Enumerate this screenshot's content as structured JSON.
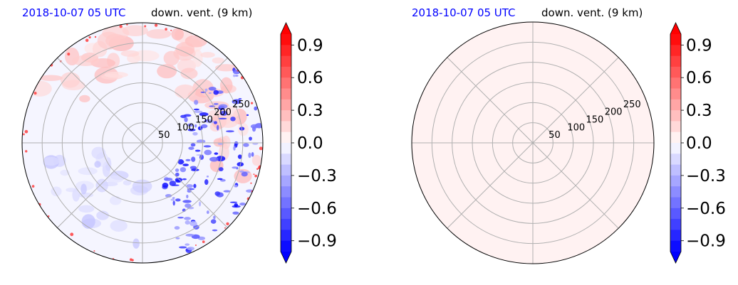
{
  "chart_data": [
    {
      "type": "polar",
      "title_left": "2018-10-07 05 UTC",
      "title_right": "down. vent. (9 km)",
      "radial_ticks": [
        "50",
        "100",
        "150",
        "200",
        "250"
      ],
      "radial_values": [
        50,
        100,
        150,
        200,
        250
      ],
      "rmax": 300,
      "field": "nonzero",
      "colorbar": {
        "range": [
          -1.0,
          1.0
        ],
        "tick_values": [
          0.9,
          0.6,
          0.3,
          0.0,
          -0.3,
          -0.6,
          -0.9
        ],
        "tick_labels": [
          "0.9",
          "0.6",
          "0.3",
          "0.0",
          "−0.3",
          "−0.6",
          "−0.9"
        ],
        "colormap": "bwr",
        "extend": "both"
      }
    },
    {
      "type": "polar",
      "title_left": "2018-10-07 05 UTC",
      "title_right": "down. vent. (9 km)",
      "radial_ticks": [
        "50",
        "100",
        "150",
        "200",
        "250"
      ],
      "radial_values": [
        50,
        100,
        150,
        200,
        250
      ],
      "rmax": 300,
      "field": "uniform_near_zero",
      "colorbar": {
        "range": [
          -1.0,
          1.0
        ],
        "tick_values": [
          0.9,
          0.6,
          0.3,
          0.0,
          -0.3,
          -0.6,
          -0.9
        ],
        "tick_labels": [
          "0.9",
          "0.6",
          "0.3",
          "0.0",
          "−0.3",
          "−0.6",
          "−0.9"
        ],
        "colormap": "bwr",
        "extend": "both"
      }
    }
  ],
  "colors": {
    "title_date": "#0000ff",
    "grid": "#b0b0b0",
    "positive": "#ff0000",
    "negative": "#0000ff"
  }
}
